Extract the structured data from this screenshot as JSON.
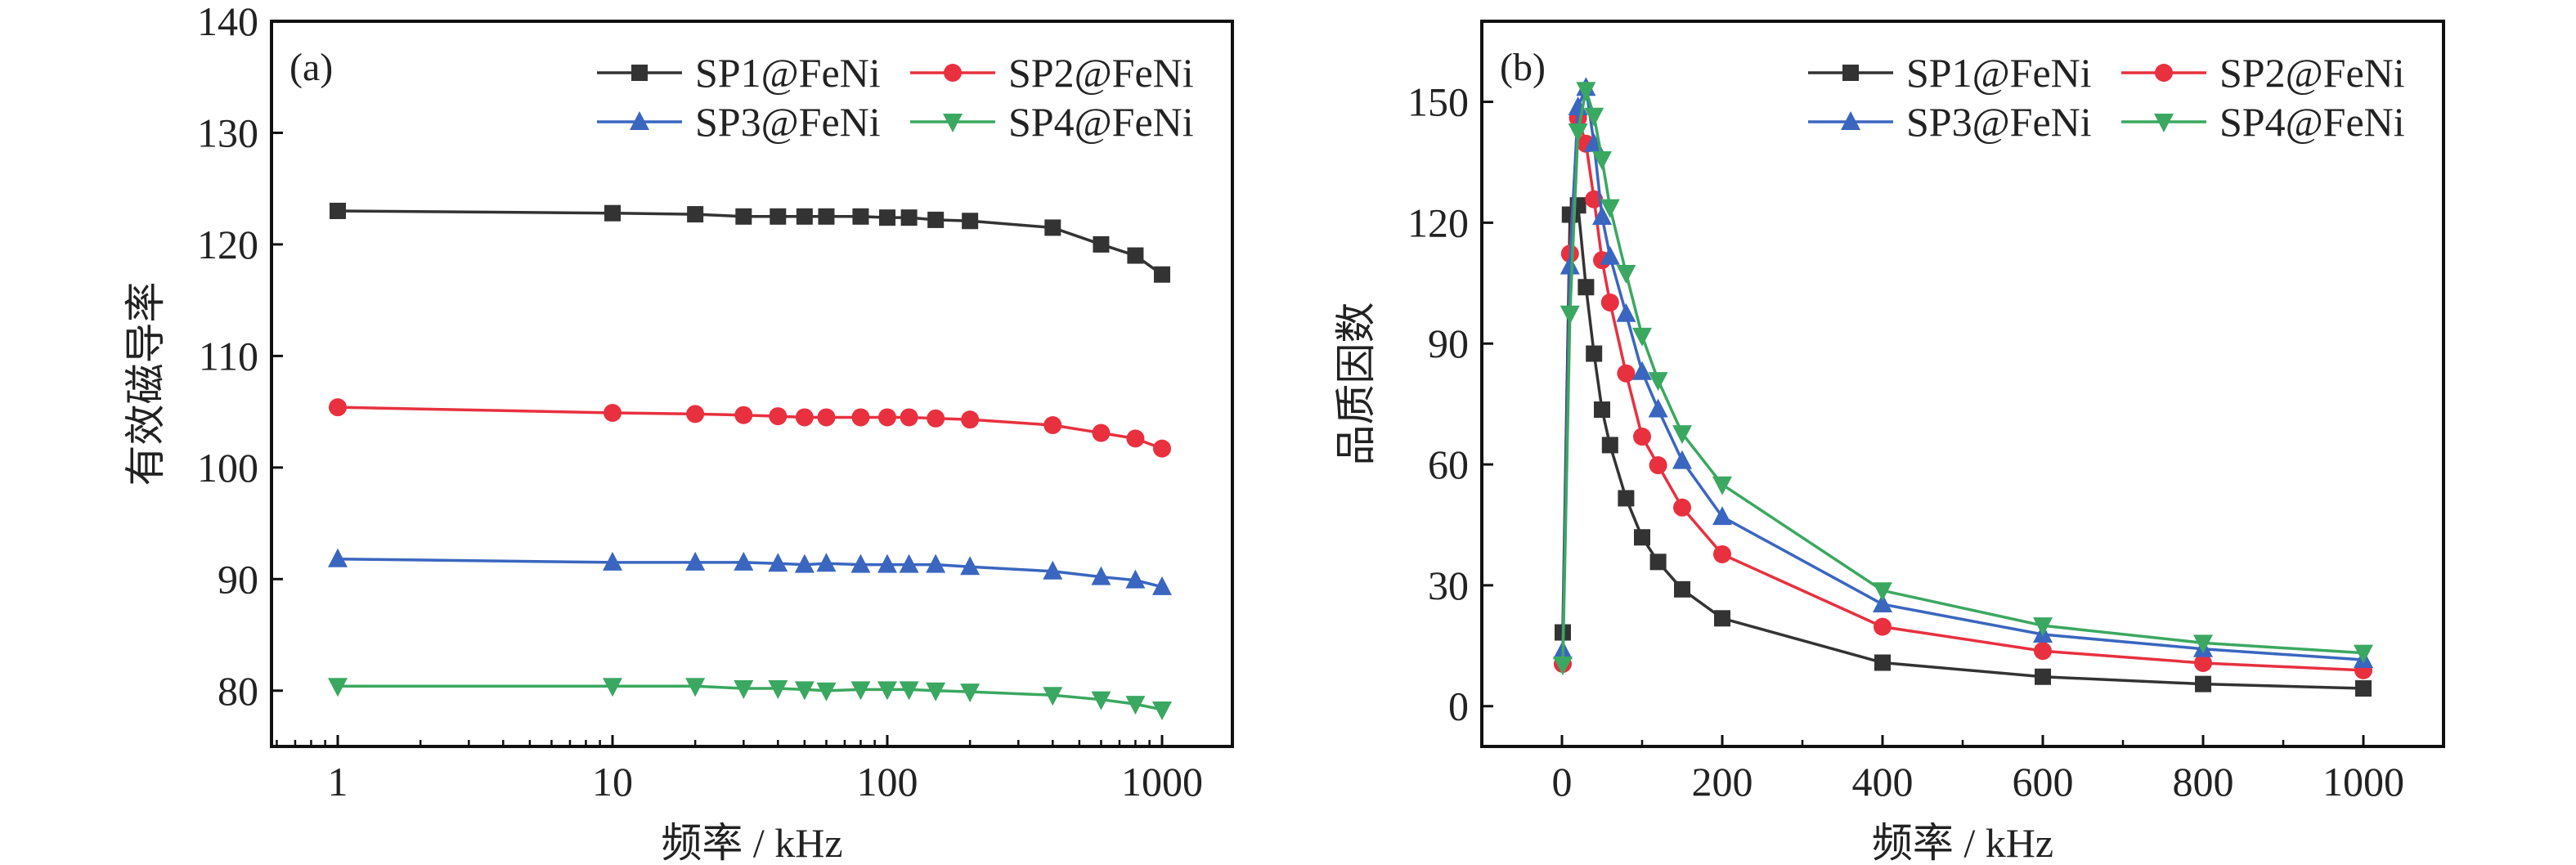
{
  "colors": {
    "SP1@FeNi": "#333333",
    "SP2@FeNi": "#e8303f",
    "SP3@FeNi": "#3a66c0",
    "SP4@FeNi": "#3aa860"
  },
  "chart_data": [
    {
      "type": "line",
      "panel_label": "(a)",
      "xlabel": "频率 / kHz",
      "ylabel": "有效磁导率",
      "xscale": "log",
      "xlim": [
        0.574,
        1803
      ],
      "ylim": [
        75,
        140
      ],
      "xticks": [
        1,
        10,
        100,
        1000
      ],
      "xtick_labels": [
        "1",
        "10",
        "100",
        "1000"
      ],
      "yticks": [
        80,
        90,
        100,
        110,
        120,
        130,
        140
      ],
      "ytick_labels": [
        "80",
        "90",
        "100",
        "110",
        "120",
        "130",
        "140"
      ],
      "grid": false,
      "legend_position": "top-right",
      "x": [
        1,
        10,
        20,
        30,
        40,
        50,
        60,
        80,
        100,
        120,
        150,
        200,
        400,
        600,
        800,
        1000
      ],
      "series": [
        {
          "name": "SP1@FeNi",
          "marker": "square",
          "values": [
            123.0,
            122.8,
            122.7,
            122.5,
            122.5,
            122.5,
            122.5,
            122.5,
            122.4,
            122.4,
            122.2,
            122.1,
            121.5,
            120.0,
            119.0,
            117.3
          ]
        },
        {
          "name": "SP2@FeNi",
          "marker": "circle",
          "values": [
            105.4,
            104.9,
            104.8,
            104.7,
            104.6,
            104.5,
            104.5,
            104.5,
            104.5,
            104.5,
            104.4,
            104.3,
            103.8,
            103.1,
            102.6,
            101.7
          ]
        },
        {
          "name": "SP3@FeNi",
          "marker": "triangle-up",
          "values": [
            91.8,
            91.5,
            91.5,
            91.5,
            91.4,
            91.3,
            91.4,
            91.3,
            91.3,
            91.3,
            91.3,
            91.1,
            90.7,
            90.2,
            89.9,
            89.3
          ]
        },
        {
          "name": "SP4@FeNi",
          "marker": "triangle-down",
          "values": [
            80.4,
            80.4,
            80.4,
            80.2,
            80.2,
            80.1,
            80.0,
            80.1,
            80.1,
            80.1,
            80.0,
            79.9,
            79.6,
            79.2,
            78.8,
            78.3
          ]
        }
      ]
    },
    {
      "type": "line",
      "panel_label": "(b)",
      "xlabel": "频率 / kHz",
      "ylabel": "品质因数",
      "xscale": "linear",
      "xlim": [
        -100,
        1100
      ],
      "ylim": [
        -10,
        170
      ],
      "xticks": [
        0,
        200,
        400,
        600,
        800,
        1000
      ],
      "xtick_labels": [
        "0",
        "200",
        "400",
        "600",
        "800",
        "1000"
      ],
      "yticks": [
        0,
        30,
        60,
        90,
        120,
        150
      ],
      "ytick_labels": [
        "0",
        "30",
        "60",
        "90",
        "120",
        "150"
      ],
      "grid": false,
      "legend_position": "top-right",
      "x": [
        1,
        10,
        20,
        30,
        40,
        50,
        60,
        80,
        100,
        120,
        150,
        200,
        400,
        600,
        800,
        1000
      ],
      "series": [
        {
          "name": "SP1@FeNi",
          "marker": "square",
          "values": [
            18.3,
            122.0,
            124.3,
            104.0,
            87.5,
            73.6,
            64.8,
            51.6,
            41.9,
            35.8,
            29.0,
            21.8,
            10.8,
            7.3,
            5.5,
            4.4
          ]
        },
        {
          "name": "SP2@FeNi",
          "marker": "circle",
          "values": [
            10.5,
            112.3,
            146.0,
            139.6,
            125.8,
            110.7,
            100.2,
            82.6,
            66.9,
            59.8,
            49.3,
            37.7,
            19.7,
            13.7,
            10.7,
            8.9
          ]
        },
        {
          "name": "SP3@FeNi",
          "marker": "triangle-up",
          "values": [
            13.7,
            109.2,
            148.7,
            153.5,
            139.6,
            121.5,
            111.6,
            97.4,
            83.0,
            73.7,
            60.9,
            47.0,
            25.3,
            17.8,
            14.2,
            11.5
          ]
        },
        {
          "name": "SP4@FeNi",
          "marker": "triangle-down",
          "values": [
            10.3,
            97.4,
            142.6,
            152.9,
            146.5,
            135.7,
            123.8,
            107.5,
            91.9,
            80.9,
            67.7,
            55.0,
            28.7,
            20.0,
            15.7,
            13.2
          ]
        }
      ]
    }
  ]
}
